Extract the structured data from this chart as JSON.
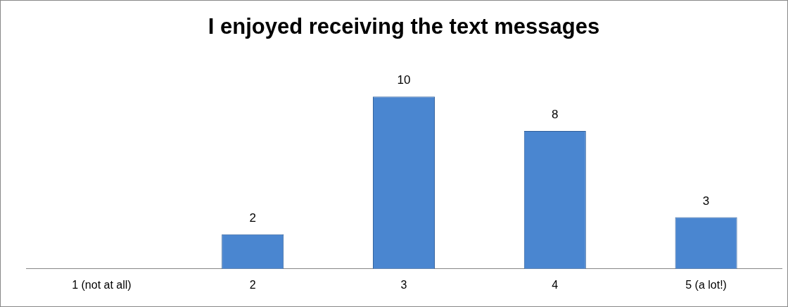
{
  "chart_data": {
    "type": "bar",
    "title": "I enjoyed receiving the text messages",
    "categories": [
      "1 (not at all)",
      "2",
      "3",
      "4",
      "5 (a lot!)"
    ],
    "values": [
      0,
      2,
      10,
      8,
      3
    ],
    "value_labels": [
      null,
      "2",
      "10",
      "8",
      "3"
    ],
    "color": "#4a86d0",
    "grid": false,
    "legend": false
  }
}
